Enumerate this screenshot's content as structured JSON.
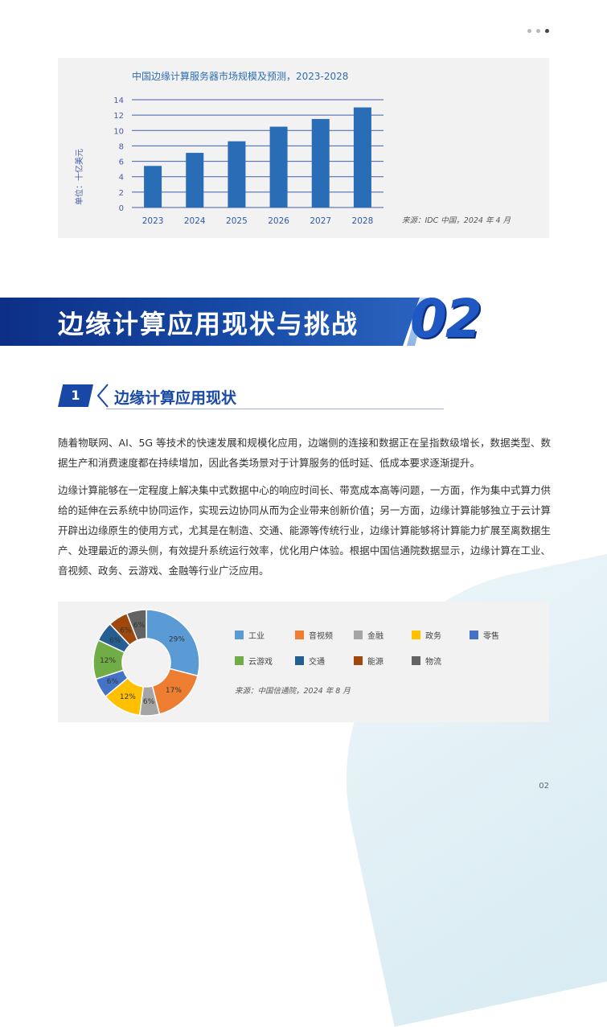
{
  "page": {
    "page_number": "02"
  },
  "bar_chart": {
    "title": "中国边缘计算服务器市场规模及预测，2023-2028",
    "ylabel": "单位：十亿美元",
    "source": "来源：IDC 中国，2024 年 4 月",
    "bar_color": "#2a6db7"
  },
  "chart_data": [
    {
      "type": "bar",
      "title": "中国边缘计算服务器市场规模及预测，2023-2028",
      "xlabel": "",
      "ylabel": "单位：十亿美元",
      "categories": [
        "2023",
        "2024",
        "2025",
        "2026",
        "2027",
        "2028"
      ],
      "values": [
        5.4,
        7.1,
        8.6,
        10.5,
        11.5,
        13.0
      ],
      "ylim": [
        0,
        14
      ],
      "yticks": [
        0,
        2,
        4,
        6,
        8,
        10,
        12,
        14
      ],
      "grid": true
    },
    {
      "type": "pie",
      "categories": [
        "工业",
        "音视频",
        "金融",
        "政务",
        "零售",
        "云游戏",
        "交通",
        "能源",
        "物流"
      ],
      "values": [
        29,
        17,
        6,
        12,
        6,
        12,
        6,
        6,
        6
      ],
      "labels": [
        "29%",
        "17%",
        "6%",
        "12%",
        "6%",
        "12%",
        "6%",
        "6%",
        "6%"
      ],
      "colors": [
        "#5b9bd5",
        "#ed7d31",
        "#a5a5a5",
        "#ffc000",
        "#4472c4",
        "#70ad47",
        "#255e91",
        "#9e480e",
        "#636363"
      ],
      "legend": "right"
    }
  ],
  "section": {
    "banner_title": "边缘计算应用现状与挑战",
    "banner_number": "02",
    "sub_number": "1",
    "sub_title": "边缘计算应用现状"
  },
  "body": {
    "p1": "随着物联网、AI、5G 等技术的快速发展和规模化应用，边端侧的连接和数据正在呈指数级增长，数据类型、数据生产和消费速度都在持续增加，因此各类场景对于计算服务的低时延、低成本要求逐渐提升。",
    "p2": "边缘计算能够在一定程度上解决集中式数据中心的响应时间长、带宽成本高等问题，一方面，作为集中式算力供给的延伸在云系统中协同运作，实现云边协同从而为企业带来创新价值；另一方面，边缘计算能够独立于云计算开辟出边缘原生的使用方式，尤其是在制造、交通、能源等传统行业，边缘计算能够将计算能力扩展至离数据生产、处理最近的源头侧，有效提升系统运行效率，优化用户体验。根据中国信通院数据显示，边缘计算在工业、音视频、政务、云游戏、金融等行业广泛应用。"
  },
  "pie_chart": {
    "source": "来源：中国信通院，2024 年 8 月"
  }
}
